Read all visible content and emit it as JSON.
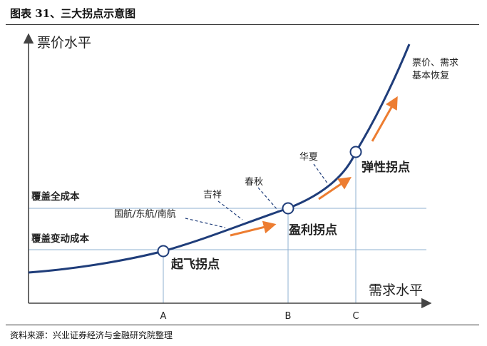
{
  "title": "图表 31、三大拐点示意图",
  "source": "资料来源：兴业证券经济与金融研究院整理",
  "axes": {
    "y_label": "票价水平",
    "x_label": "需求水平",
    "x_ticks": [
      "A",
      "B",
      "C"
    ]
  },
  "levels": {
    "full_cost": "覆盖全成本",
    "variable_cost": "覆盖变动成本"
  },
  "points": {
    "takeoff": "起飞拐点",
    "profit": "盈利拐点",
    "elastic": "弹性拐点"
  },
  "airlines": {
    "big_three": "国航/东航/南航",
    "juneyao": "吉祥",
    "spring": "春秋",
    "huaxia": "华夏"
  },
  "recovery": {
    "line1": "票价、需求",
    "line2": "基本恢复"
  },
  "colors": {
    "curve": "#1f3d7a",
    "arrow": "#ed7d31",
    "guide": "#8fb0d0",
    "axis": "#444444"
  }
}
